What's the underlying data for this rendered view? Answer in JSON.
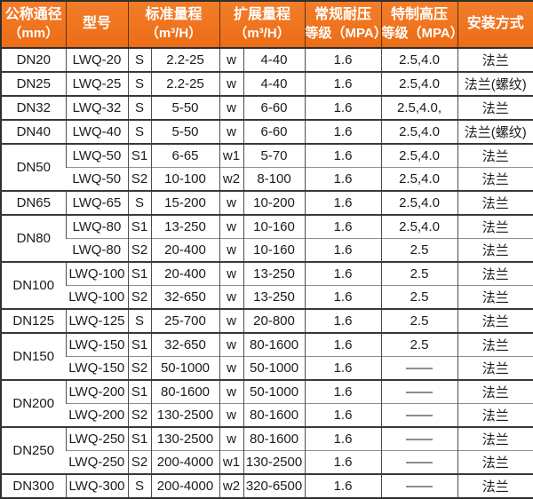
{
  "chart_data": {
    "type": "table",
    "headers": [
      {
        "line1": "公称通径",
        "line2": "（mm）"
      },
      {
        "line1": "型号",
        "line2": ""
      },
      {
        "line1": "标准量程",
        "line2": "（m³/H）"
      },
      {
        "line1": "扩展量程",
        "line2": "（m³/H）"
      },
      {
        "line1": "常规耐压",
        "line2": "等级（MPA）"
      },
      {
        "line1": "特制高压",
        "line2": "等级（MPA）"
      },
      {
        "line1": "安装方式",
        "line2": ""
      }
    ],
    "rows": [
      {
        "diameter": "DN20",
        "diameter_rowspan": 1,
        "model": "LWQ-20",
        "range_code": "S",
        "standard_range": "2.2-25",
        "ext_code": "w",
        "extended_range": "4-40",
        "pressure_regular": "1.6",
        "pressure_high": "2.5,4.0",
        "installation": "法兰"
      },
      {
        "diameter": "DN25",
        "diameter_rowspan": 1,
        "model": "LWQ-25",
        "range_code": "S",
        "standard_range": "2.2-25",
        "ext_code": "w",
        "extended_range": "4-40",
        "pressure_regular": "1.6",
        "pressure_high": "2.5,4.0",
        "installation": "法兰(螺纹)"
      },
      {
        "diameter": "DN32",
        "diameter_rowspan": 1,
        "model": "LWQ-32",
        "range_code": "S",
        "standard_range": "5-50",
        "ext_code": "w",
        "extended_range": "6-60",
        "pressure_regular": "1.6",
        "pressure_high": "2.5,4.0,",
        "installation": "法兰"
      },
      {
        "diameter": "DN40",
        "diameter_rowspan": 1,
        "model": "LWQ-40",
        "range_code": "S",
        "standard_range": "5-50",
        "ext_code": "w",
        "extended_range": "6-60",
        "pressure_regular": "1.6",
        "pressure_high": "2.5,4.0",
        "installation": "法兰(螺纹)"
      },
      {
        "diameter": "DN50",
        "diameter_rowspan": 2,
        "model": "LWQ-50",
        "range_code": "S1",
        "standard_range": "6-65",
        "ext_code": "w1",
        "extended_range": "5-70",
        "pressure_regular": "1.6",
        "pressure_high": "2.5,4.0",
        "installation": "法兰"
      },
      {
        "diameter": null,
        "model": "LWQ-50",
        "range_code": "S2",
        "standard_range": "10-100",
        "ext_code": "w2",
        "extended_range": "8-100",
        "pressure_regular": "1.6",
        "pressure_high": "2.5,4.0",
        "installation": "法兰"
      },
      {
        "diameter": "DN65",
        "diameter_rowspan": 1,
        "model": "LWQ-65",
        "range_code": "S",
        "standard_range": "15-200",
        "ext_code": "w",
        "extended_range": "10-200",
        "pressure_regular": "1.6",
        "pressure_high": "2.5,4.0",
        "installation": "法兰"
      },
      {
        "diameter": "DN80",
        "diameter_rowspan": 2,
        "model": "LWQ-80",
        "range_code": "S1",
        "standard_range": "13-250",
        "ext_code": "w",
        "extended_range": "10-160",
        "pressure_regular": "1.6",
        "pressure_high": "2.5,4.0",
        "installation": "法兰"
      },
      {
        "diameter": null,
        "model": "LWQ-80",
        "range_code": "S2",
        "standard_range": "20-400",
        "ext_code": "w",
        "extended_range": "10-160",
        "pressure_regular": "1.6",
        "pressure_high": "2.5",
        "installation": "法兰"
      },
      {
        "diameter": "DN100",
        "diameter_rowspan": 2,
        "model": "LWQ-100",
        "range_code": "S1",
        "standard_range": "20-400",
        "ext_code": "w",
        "extended_range": "13-250",
        "pressure_regular": "1.6",
        "pressure_high": "2.5",
        "installation": "法兰"
      },
      {
        "diameter": null,
        "model": "LWQ-100",
        "range_code": "S2",
        "standard_range": "32-650",
        "ext_code": "w",
        "extended_range": "13-250",
        "pressure_regular": "1.6",
        "pressure_high": "2.5",
        "installation": "法兰"
      },
      {
        "diameter": "DN125",
        "diameter_rowspan": 1,
        "model": "LWQ-125",
        "range_code": "S",
        "standard_range": "25-700",
        "ext_code": "w",
        "extended_range": "20-800",
        "pressure_regular": "1.6",
        "pressure_high": "2.5",
        "installation": "法兰"
      },
      {
        "diameter": "DN150",
        "diameter_rowspan": 2,
        "model": "LWQ-150",
        "range_code": "S1",
        "standard_range": "32-650",
        "ext_code": "w",
        "extended_range": "80-1600",
        "pressure_regular": "1.6",
        "pressure_high": "2.5",
        "installation": "法兰"
      },
      {
        "diameter": null,
        "model": "LWQ-150",
        "range_code": "S2",
        "standard_range": "50-1000",
        "ext_code": "w",
        "extended_range": "50-1000",
        "pressure_regular": "1.6",
        "pressure_high": "——",
        "installation": "法兰"
      },
      {
        "diameter": "DN200",
        "diameter_rowspan": 2,
        "model": "LWQ-200",
        "range_code": "S1",
        "standard_range": "80-1600",
        "ext_code": "w",
        "extended_range": "50-1000",
        "pressure_regular": "1.6",
        "pressure_high": "——",
        "installation": "法兰"
      },
      {
        "diameter": null,
        "model": "LWQ-200",
        "range_code": "S2",
        "standard_range": "130-2500",
        "ext_code": "w",
        "extended_range": "80-1600",
        "pressure_regular": "1.6",
        "pressure_high": "——",
        "installation": "法兰"
      },
      {
        "diameter": "DN250",
        "diameter_rowspan": 2,
        "model": "LWQ-250",
        "range_code": "S1",
        "standard_range": "130-2500",
        "ext_code": "w",
        "extended_range": "80-1600",
        "pressure_regular": "1.6",
        "pressure_high": "——",
        "installation": "法兰"
      },
      {
        "diameter": null,
        "model": "LWQ-250",
        "range_code": "S2",
        "standard_range": "200-4000",
        "ext_code": "w1",
        "extended_range": "130-2500",
        "pressure_regular": "1.6",
        "pressure_high": "——",
        "installation": "法兰"
      },
      {
        "diameter": "DN300",
        "diameter_rowspan": 1,
        "model": "LWQ-300",
        "range_code": "S",
        "standard_range": "200-4000",
        "ext_code": "w2",
        "extended_range": "320-6500",
        "pressure_regular": "1.6",
        "pressure_high": "——",
        "installation": "法兰"
      }
    ]
  },
  "colors": {
    "header_bg": "#EF7320",
    "header_text": "#FFFFFF",
    "body_bg": "#FFFFFF",
    "body_text": "#1B1B1B",
    "border_dark": "#2E2E2E",
    "border_medium": "#4D4D4D",
    "border_light": "#8F8F8F"
  }
}
